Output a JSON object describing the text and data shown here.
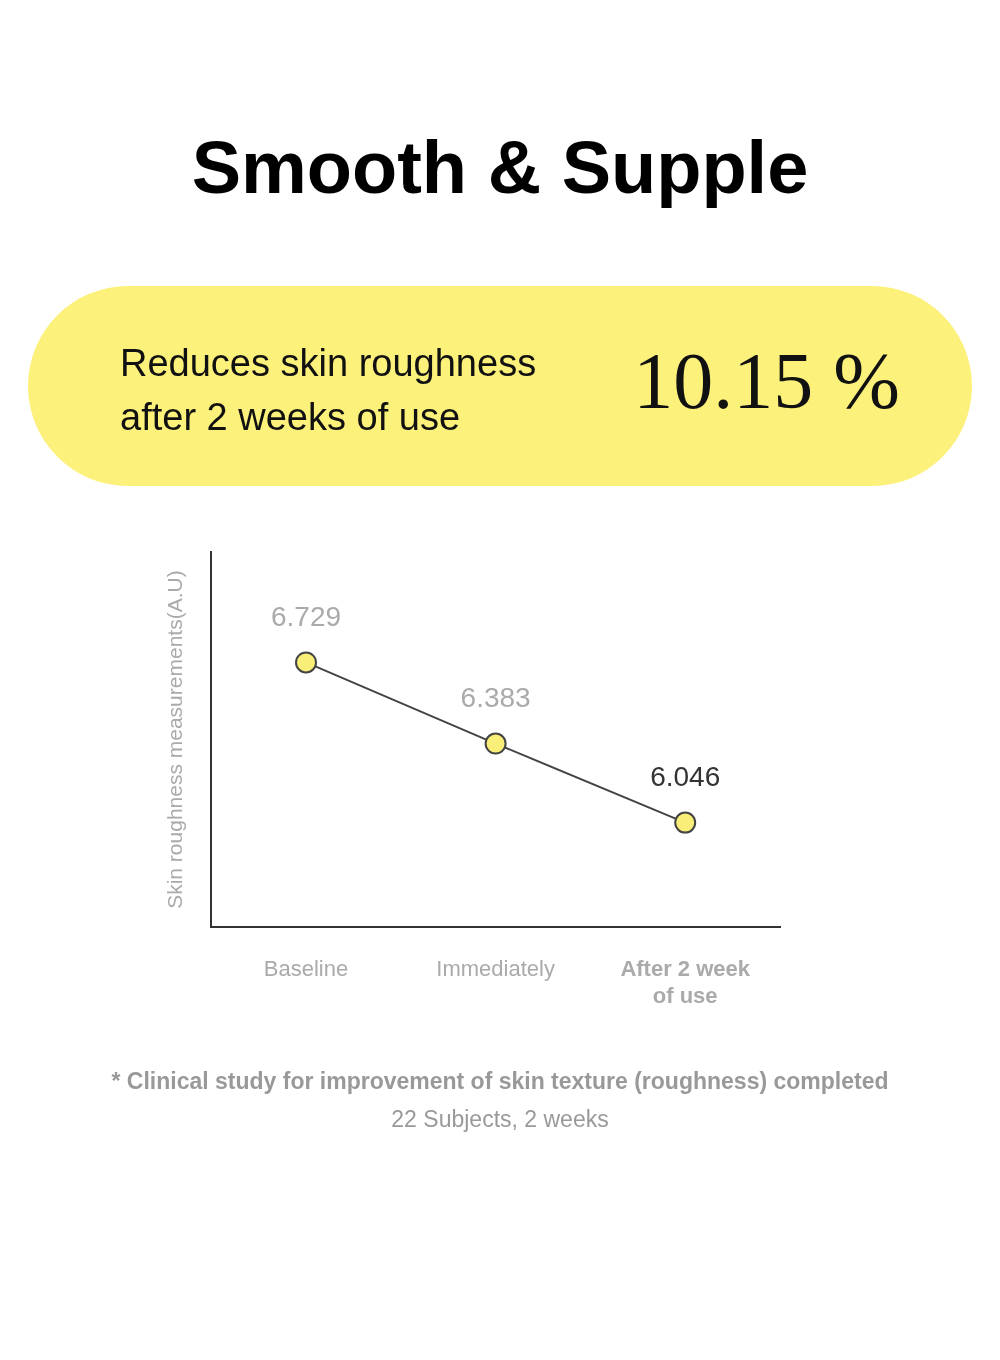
{
  "chart_data": {
    "type": "line",
    "title": "Smooth & Supple",
    "subtitle": "Reduces skin roughness after 2 weeks of use",
    "ylabel": "Skin roughness measurements(A.U)",
    "categories": [
      "Baseline",
      "Immediately",
      "After 2 week of use"
    ],
    "series": [
      {
        "color": "#444444",
        "values": [
          6.729,
          6.383,
          6.046
        ]
      }
    ],
    "marker": "circle",
    "data_labels": true,
    "grid": false,
    "legend": false,
    "tick_labels": "x",
    "annotations": [
      "10.15 %",
      "* Clinical study for improvement of skin texture (roughness) completed",
      "22 Subjects, 2 weeks"
    ]
  }
}
